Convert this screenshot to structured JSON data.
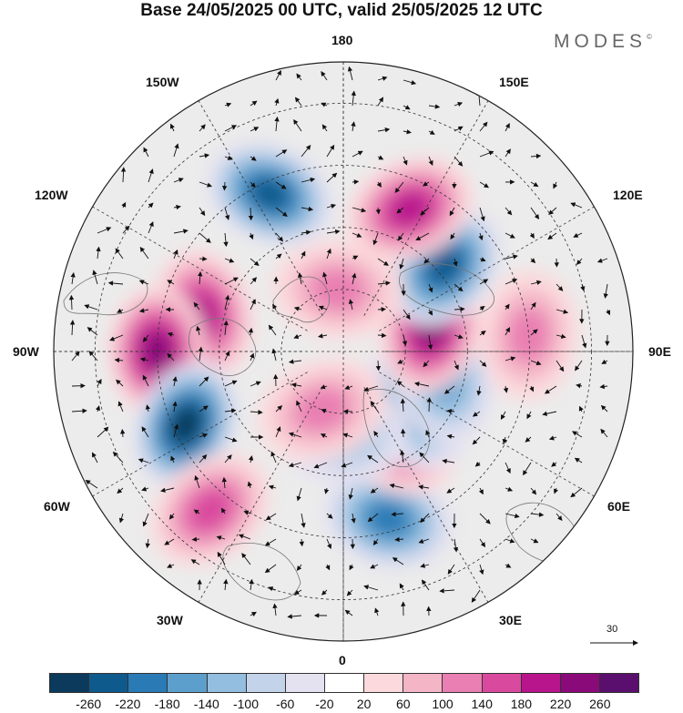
{
  "title": "Base 24/05/2025 00 UTC, valid 25/05/2025 12 UTC",
  "logo": {
    "text": "MODES",
    "mark": "©"
  },
  "longitude_labels": {
    "top": "180",
    "bottom": "0",
    "left": "90W",
    "right": "90E",
    "upper_left_1": "150W",
    "upper_left_2": "120W",
    "lower_left_1": "60W",
    "lower_left_2": "30W",
    "upper_right_1": "150E",
    "upper_right_2": "120E",
    "lower_right_1": "60E",
    "lower_right_2": "30E"
  },
  "vector_scale": {
    "label": "30"
  },
  "colorbar": {
    "ticks": [
      "-260",
      "-220",
      "-180",
      "-140",
      "-100",
      "-60",
      "-20",
      "20",
      "60",
      "100",
      "140",
      "180",
      "220",
      "260"
    ],
    "colors": [
      "#0b3a5c",
      "#0f5a8c",
      "#2a7ab5",
      "#5d9fcc",
      "#93bedf",
      "#c3d3ea",
      "#e4e1f0",
      "#ffffff",
      "#fbd9dc",
      "#f4b6c7",
      "#e97fb2",
      "#d94a9f",
      "#b8158d",
      "#8b0a7a",
      "#5a0f6e"
    ]
  },
  "anomalies": [
    {
      "lon": -155,
      "lat": 48,
      "v": -240
    },
    {
      "lon": -105,
      "lat": 55,
      "v": 200
    },
    {
      "lon": -90,
      "lat": 45,
      "v": 240
    },
    {
      "lon": -65,
      "lat": 48,
      "v": -260
    },
    {
      "lon": -40,
      "lat": 40,
      "v": 140
    },
    {
      "lon": 15,
      "lat": 48,
      "v": -180
    },
    {
      "lon": 30,
      "lat": 65,
      "v": 160
    },
    {
      "lon": 50,
      "lat": 68,
      "v": -140
    },
    {
      "lon": 75,
      "lat": 65,
      "v": -160
    },
    {
      "lon": 105,
      "lat": 68,
      "v": 220
    },
    {
      "lon": 130,
      "lat": 58,
      "v": -240
    },
    {
      "lon": 155,
      "lat": 52,
      "v": 180
    },
    {
      "lon": 95,
      "lat": 45,
      "v": 120
    },
    {
      "lon": -175,
      "lat": 75,
      "v": 100
    },
    {
      "lon": 0,
      "lat": 70,
      "v": -100
    },
    {
      "lon": -20,
      "lat": 75,
      "v": 100
    }
  ]
}
